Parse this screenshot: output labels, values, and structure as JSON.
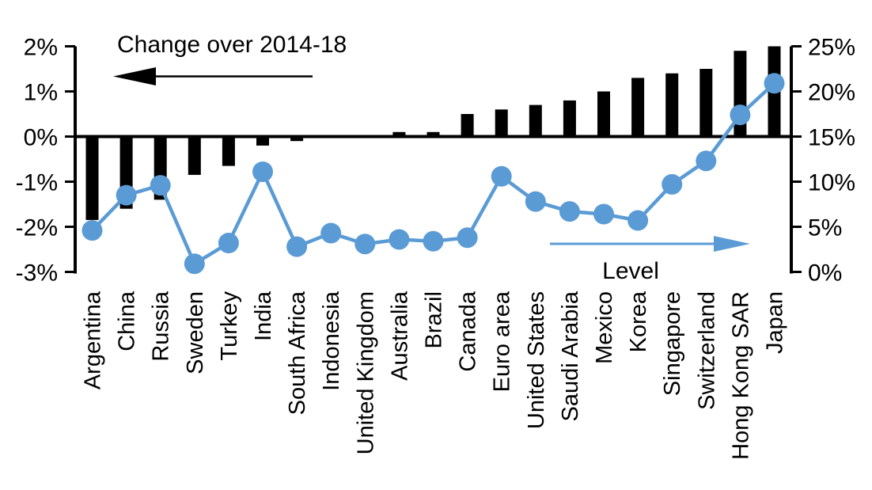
{
  "chart_data": {
    "type": "combo-bar-line",
    "categories": [
      "Argentina",
      "China",
      "Russia",
      "Sweden",
      "Turkey",
      "India",
      "South Africa",
      "Indonesia",
      "United Kingdom",
      "Australia",
      "Brazil",
      "Canada",
      "Euro area",
      "United States",
      "Saudi Arabia",
      "Mexico",
      "Korea",
      "Singapore",
      "Switzerland",
      "Hong Kong SAR",
      "Japan"
    ],
    "series": [
      {
        "name": "Change over 2014-18",
        "type": "bar",
        "axis": "left",
        "color": "#000000",
        "values": [
          -1.85,
          -1.6,
          -1.4,
          -0.85,
          -0.65,
          -0.2,
          -0.1,
          0,
          0,
          0.1,
          0.1,
          0.5,
          0.6,
          0.7,
          0.8,
          1.0,
          1.3,
          1.4,
          1.5,
          1.9,
          2.0
        ]
      },
      {
        "name": "Level",
        "type": "line",
        "axis": "right",
        "color": "#5B9BD5",
        "values": [
          4.6,
          8.5,
          9.6,
          0.9,
          3.2,
          11.1,
          2.8,
          4.3,
          3.1,
          3.6,
          3.4,
          3.8,
          10.6,
          7.8,
          6.7,
          6.4,
          5.7,
          9.7,
          12.3,
          17.4,
          20.9
        ]
      }
    ],
    "left_axis": {
      "min": -3,
      "max": 2,
      "tick_values": [
        2,
        1,
        0,
        -1,
        -2,
        -3
      ],
      "tick_suffix": "%"
    },
    "right_axis": {
      "min": 0,
      "max": 25,
      "tick_values": [
        25,
        20,
        15,
        10,
        5,
        0
      ],
      "tick_suffix": "%"
    },
    "annotations": {
      "bar_label": "Change over 2014-18",
      "line_label": "Level"
    },
    "grid": false,
    "legend_position": "in-plot-arrows",
    "title": "",
    "xlabel": "",
    "ylabel_left": "Change over 2014-18",
    "ylabel_right": "Level"
  },
  "colors": {
    "bar": "#000000",
    "line": "#5B9BD5",
    "axis": "#000000",
    "text": "#000000",
    "background": "#FFFFFF"
  }
}
